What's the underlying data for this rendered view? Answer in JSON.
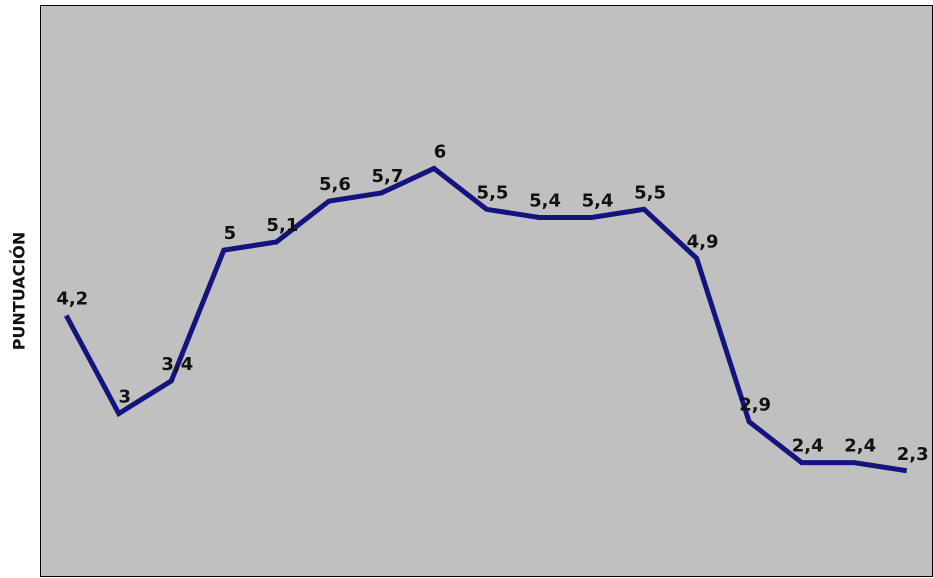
{
  "chart_data": {
    "type": "line",
    "y_label": "PUNTUACIÓN",
    "values": [
      4.2,
      3,
      3.4,
      5,
      5.1,
      5.6,
      5.7,
      6,
      5.5,
      5.4,
      5.4,
      5.5,
      4.9,
      2.9,
      2.4,
      2.4,
      2.3
    ],
    "value_labels": [
      "4,2",
      "3",
      "3,4",
      "5",
      "5,1",
      "5,6",
      "5,7",
      "6",
      "5,5",
      "5,4",
      "5,4",
      "5,5",
      "4,9",
      "2,9",
      "2,4",
      "2,4",
      "2,3"
    ],
    "color": "#14147e",
    "background": "#c0c0c0",
    "ylim": [
      1,
      8
    ],
    "grid": false
  }
}
